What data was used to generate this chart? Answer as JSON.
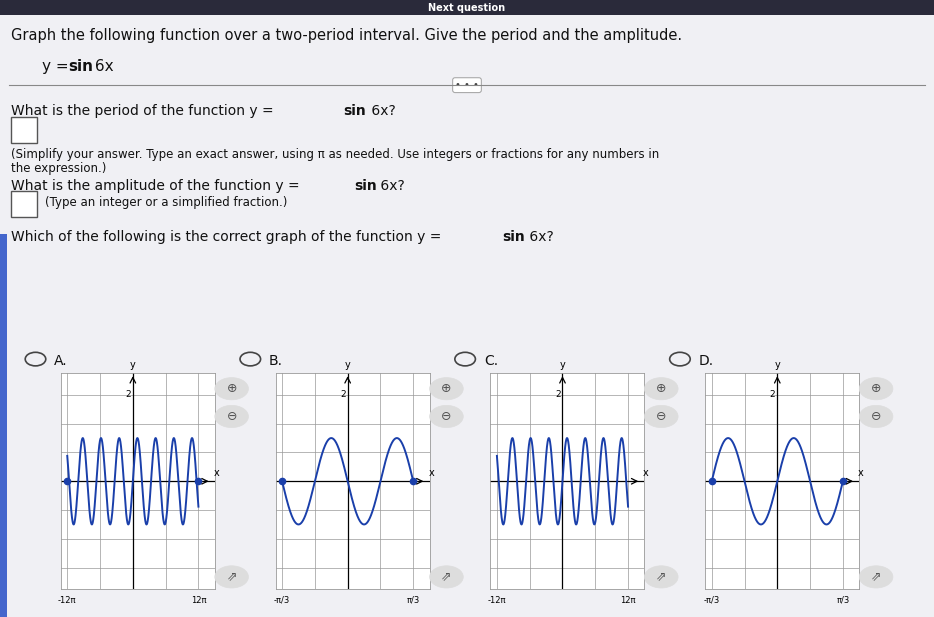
{
  "title_text": "Graph the following function over a two-period interval. Give the period and the amplitude.",
  "func_label": "y = sin 6x",
  "q1": "What is the period of the function y = ",
  "q1b": "sin",
  "q1c": " 6x?",
  "hint1_line1": "(Simplify your answer. Type an exact answer, using π as needed. Use integers or fractions for any numbers in",
  "hint1_line2": "the expression.)",
  "q2": "What is the amplitude of the function y = ",
  "q2b": "sin",
  "q2c": " 6x?",
  "hint2": "(Type an integer or a simplified fraction.)",
  "q3": "Which of the following is the correct graph of the function y = ",
  "q3b": "sin",
  "q3c": " 6x?",
  "bg_color": "#dcdce4",
  "white_bg": "#f0f0f4",
  "text_color": "#111111",
  "graph_line_color": "#1a3faa",
  "graph_bg": "#ffffff",
  "graph_grid_color": "#999999",
  "options": [
    "A.",
    "B.",
    "C.",
    "D."
  ],
  "graphs": [
    {
      "label": "A",
      "xmin": -3.7699111843,
      "xmax": 3.7699111843,
      "ymin": -2.5,
      "ymax": 2.5,
      "xtick_labels": [
        "-12π",
        "12π"
      ],
      "func": "sin_large",
      "start_dot": true,
      "end_dot": true,
      "arrow": true
    },
    {
      "label": "B",
      "xmin": -1.0471975512,
      "xmax": 1.0471975512,
      "ymin": -2.5,
      "ymax": 2.5,
      "xtick_labels": [
        "-π/3",
        "π/3"
      ],
      "func": "neg_sin_small",
      "start_dot": true,
      "end_dot": true,
      "arrow": true
    },
    {
      "label": "C",
      "xmin": -3.7699111843,
      "xmax": 3.7699111843,
      "ymin": -2.5,
      "ymax": 2.5,
      "xtick_labels": [
        "-12π",
        "12π"
      ],
      "func": "sin_large",
      "start_dot": false,
      "end_dot": false,
      "arrow": true
    },
    {
      "label": "D",
      "xmin": -1.0471975512,
      "xmax": 1.0471975512,
      "ymin": -2.5,
      "ymax": 2.5,
      "xtick_labels": [
        "-π/3",
        "π/3"
      ],
      "func": "sin_small",
      "start_dot": true,
      "end_dot": true,
      "arrow": true
    }
  ]
}
